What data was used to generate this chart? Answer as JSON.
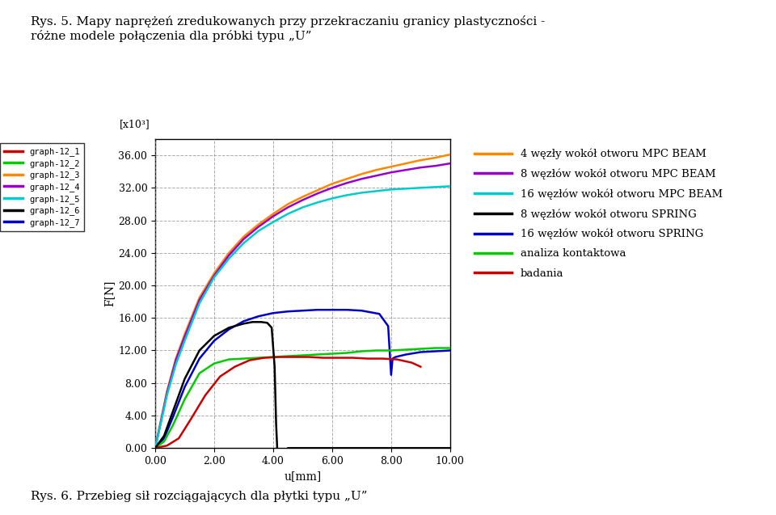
{
  "title_top": "Rys. 5. Mapy naprężeń zredukowanych przy przekraczaniu granicy plastyczności -\nróżne modele połączenia dla próbki typu „U”",
  "title_bottom": "Rys. 6. Przebieg sił rozciągających dla płytki typu „U”",
  "xlabel": "u[mm]",
  "ylabel": "F[N]",
  "ytick_label": "[x10³]",
  "xlim": [
    0.0,
    10.0
  ],
  "ylim": [
    0.0,
    38000
  ],
  "xticks": [
    0.0,
    2.0,
    4.0,
    6.0,
    8.0,
    10.0
  ],
  "yticks": [
    0,
    4000,
    8000,
    12000,
    16000,
    20000,
    24000,
    28000,
    32000,
    36000
  ],
  "ytick_labels": [
    "0.00",
    "4.00",
    "8.00",
    "12.00",
    "16.00",
    "20.00",
    "24.00",
    "28.00",
    "32.00",
    "36.00"
  ],
  "xtick_labels": [
    "0.00",
    "2.00",
    "4.00",
    "6.00",
    "8.00",
    "10.00"
  ],
  "legend_left_labels": [
    "graph-12_1",
    "graph-12_2",
    "graph-12_3",
    "graph-12_4",
    "graph-12_5",
    "graph-12_6",
    "graph-12_7"
  ],
  "legend_left_colors": [
    "#cc0000",
    "#00cc00",
    "#ff8800",
    "#9900cc",
    "#00cccc",
    "#000000",
    "#0000cc"
  ],
  "legend_right": [
    {
      "label": "4 węzły wokół otworu MPC BEAM",
      "color": "#ff8800"
    },
    {
      "label": "8 węzłów wokół otworu MPC BEAM",
      "color": "#9900cc"
    },
    {
      "label": "16 węzłów wokół otworu MPC BEAM",
      "color": "#00cccc"
    },
    {
      "label": "8 węzłów wokół otworu SPRING",
      "color": "#000000"
    },
    {
      "label": "16 węzłów wokół otworu SPRING",
      "color": "#0000cc"
    },
    {
      "label": "analiza kontaktowa",
      "color": "#00cc00"
    },
    {
      "label": "badania",
      "color": "#cc0000"
    }
  ],
  "background_color": "#ffffff",
  "plot_bg_color": "#ffffff",
  "grid_color": "#888888",
  "curves": {
    "orange": {
      "color": "#ff8800",
      "x": [
        0.0,
        0.2,
        0.4,
        0.7,
        1.0,
        1.5,
        2.0,
        2.5,
        3.0,
        3.5,
        4.0,
        4.5,
        5.0,
        5.5,
        6.0,
        6.5,
        7.0,
        7.5,
        8.0,
        8.5,
        9.0,
        9.5,
        10.0
      ],
      "y": [
        0,
        3500,
        7000,
        11000,
        14000,
        18500,
        21500,
        24000,
        26000,
        27500,
        28800,
        30000,
        30900,
        31700,
        32500,
        33100,
        33700,
        34200,
        34600,
        35000,
        35400,
        35700,
        36100
      ]
    },
    "purple": {
      "color": "#9900cc",
      "x": [
        0.0,
        0.2,
        0.4,
        0.7,
        1.0,
        1.5,
        2.0,
        2.5,
        3.0,
        3.5,
        4.0,
        4.5,
        5.0,
        5.5,
        6.0,
        6.5,
        7.0,
        7.5,
        8.0,
        8.5,
        9.0,
        9.5,
        10.0
      ],
      "y": [
        0,
        3400,
        6800,
        10800,
        13700,
        18200,
        21200,
        23700,
        25700,
        27200,
        28500,
        29600,
        30500,
        31300,
        32000,
        32600,
        33100,
        33500,
        33900,
        34200,
        34500,
        34700,
        35000
      ]
    },
    "cyan": {
      "color": "#00cccc",
      "x": [
        0.0,
        0.2,
        0.4,
        0.7,
        1.0,
        1.5,
        2.0,
        2.5,
        3.0,
        3.5,
        4.0,
        4.5,
        5.0,
        5.5,
        6.0,
        6.5,
        7.0,
        7.5,
        8.0,
        8.5,
        9.0,
        9.5,
        10.0
      ],
      "y": [
        0,
        3200,
        6500,
        10300,
        13200,
        17800,
        21000,
        23300,
        25200,
        26700,
        27800,
        28800,
        29600,
        30200,
        30700,
        31100,
        31400,
        31600,
        31800,
        31900,
        32000,
        32100,
        32200
      ]
    },
    "black": {
      "color": "#000000",
      "x": [
        0.0,
        0.3,
        0.6,
        1.0,
        1.5,
        2.0,
        2.5,
        3.0,
        3.3,
        3.6,
        3.8,
        3.95,
        4.05,
        4.1,
        4.15,
        4.2,
        4.3,
        4.5,
        5.0,
        5.5,
        6.0,
        7.0,
        8.0,
        9.0,
        10.0
      ],
      "y": [
        0,
        1500,
        4500,
        8500,
        12000,
        13800,
        14800,
        15300,
        15500,
        15500,
        15400,
        14800,
        10000,
        3000,
        -1000,
        -2500,
        -1000,
        0,
        0,
        0,
        0,
        0,
        0,
        0,
        0
      ]
    },
    "blue": {
      "color": "#0000cc",
      "x": [
        0.0,
        0.3,
        0.6,
        1.0,
        1.5,
        2.0,
        2.5,
        3.0,
        3.5,
        4.0,
        4.5,
        5.0,
        5.5,
        6.0,
        6.5,
        7.0,
        7.3,
        7.6,
        7.9,
        8.0,
        8.05,
        8.15,
        8.5,
        9.0,
        10.0
      ],
      "y": [
        0,
        1200,
        3800,
        7500,
        11000,
        13200,
        14600,
        15600,
        16200,
        16600,
        16800,
        16900,
        17000,
        17000,
        17000,
        16900,
        16700,
        16500,
        15000,
        9000,
        11000,
        11200,
        11500,
        11800,
        12000
      ]
    },
    "green": {
      "color": "#00cc00",
      "x": [
        0.0,
        0.3,
        0.6,
        1.0,
        1.5,
        2.0,
        2.5,
        3.0,
        3.5,
        4.0,
        4.5,
        5.0,
        5.5,
        6.0,
        6.5,
        7.0,
        7.5,
        8.0,
        8.5,
        9.0,
        9.5,
        10.0
      ],
      "y": [
        0,
        800,
        2800,
        6000,
        9200,
        10400,
        10900,
        11000,
        11100,
        11200,
        11300,
        11400,
        11500,
        11600,
        11700,
        11900,
        12000,
        12000,
        12100,
        12200,
        12300,
        12300
      ]
    },
    "red": {
      "color": "#cc0000",
      "x": [
        0.0,
        0.4,
        0.8,
        1.2,
        1.7,
        2.2,
        2.7,
        3.2,
        3.7,
        4.2,
        4.7,
        5.2,
        5.7,
        6.2,
        6.7,
        7.2,
        7.7,
        8.2,
        8.7,
        9.0
      ],
      "y": [
        0,
        300,
        1200,
        3500,
        6500,
        8800,
        10000,
        10800,
        11100,
        11200,
        11200,
        11200,
        11100,
        11100,
        11100,
        11000,
        11000,
        10900,
        10500,
        10000
      ]
    }
  }
}
